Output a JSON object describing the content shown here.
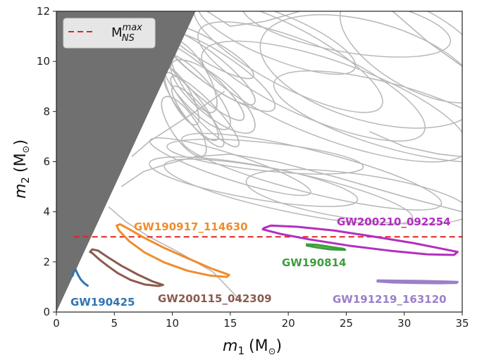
{
  "chart_data": {
    "type": "line",
    "xlim": [
      0,
      35
    ],
    "ylim": [
      0,
      12
    ],
    "xticks": [
      "0",
      "5",
      "10",
      "15",
      "20",
      "25",
      "30",
      "35"
    ],
    "yticks": [
      "0",
      "2",
      "4",
      "6",
      "8",
      "10",
      "12"
    ],
    "xlabel_var": "m",
    "xlabel_sub": "1",
    "xlabel_unit": "(M",
    "xlabel_close": ")",
    "ylabel_var": "m",
    "ylabel_sub": "2",
    "ylabel_unit": "(M",
    "ylabel_close": ")",
    "sun_symbol": "⊙",
    "excluded_region": "m2 > m1",
    "reference_line": {
      "y": 3.0,
      "color": "#e32222",
      "style": "dashed",
      "legend_main": "M",
      "legend_sup": "max",
      "legend_sub": "NS"
    },
    "background_contours_color": "#b8b8b8",
    "events": [
      {
        "name": "GW190425",
        "color": "#2f76b4",
        "x": [
          1.4,
          1.5,
          1.65,
          1.85,
          2.1,
          2.4,
          2.7
        ],
        "y": [
          1.45,
          1.6,
          1.7,
          1.5,
          1.3,
          1.15,
          1.05
        ]
      },
      {
        "name": "GW200115_042309",
        "color": "#8b5a4f",
        "x": [
          2.9,
          3.1,
          3.6,
          4.4,
          5.6,
          7.0,
          8.3,
          9.2,
          8.8,
          7.6,
          6.4,
          5.3,
          4.4,
          3.7,
          3.1
        ],
        "y": [
          2.4,
          2.5,
          2.45,
          2.2,
          1.85,
          1.5,
          1.22,
          1.08,
          1.04,
          1.1,
          1.28,
          1.55,
          1.85,
          2.1,
          2.35
        ]
      },
      {
        "name": "GW190917_114630",
        "color": "#f08c2c",
        "x": [
          5.2,
          5.5,
          6.3,
          7.5,
          9.2,
          11.3,
          13.3,
          14.9,
          14.7,
          13.3,
          11.3,
          9.3,
          7.6,
          6.3,
          5.4
        ],
        "y": [
          3.45,
          3.5,
          3.3,
          2.98,
          2.58,
          2.15,
          1.75,
          1.48,
          1.4,
          1.45,
          1.65,
          1.98,
          2.38,
          2.82,
          3.25
        ]
      },
      {
        "name": "GW200210_092254",
        "color": "#b22fbf",
        "x": [
          17.9,
          18.5,
          20.8,
          24.0,
          27.5,
          30.8,
          33.3,
          34.6,
          34.3,
          32.0,
          28.7,
          25.2,
          21.8,
          19.3,
          17.8
        ],
        "y": [
          3.35,
          3.45,
          3.4,
          3.25,
          3.0,
          2.75,
          2.52,
          2.4,
          2.28,
          2.3,
          2.45,
          2.65,
          2.9,
          3.12,
          3.3
        ]
      },
      {
        "name": "GW190814",
        "color": "#3d9e3d",
        "x": [
          21.6,
          22.5,
          23.6,
          24.8,
          24.9,
          23.6,
          22.4,
          21.6
        ],
        "y": [
          2.7,
          2.68,
          2.6,
          2.52,
          2.48,
          2.5,
          2.58,
          2.65
        ]
      },
      {
        "name": "GW191219_163120",
        "color": "#9b7fc8",
        "x": [
          27.7,
          29.5,
          31.5,
          33.5,
          34.6,
          34.5,
          33.0,
          31.0,
          29.0,
          27.7
        ],
        "y": [
          1.26,
          1.25,
          1.24,
          1.22,
          1.2,
          1.16,
          1.15,
          1.16,
          1.18,
          1.22
        ]
      }
    ]
  }
}
